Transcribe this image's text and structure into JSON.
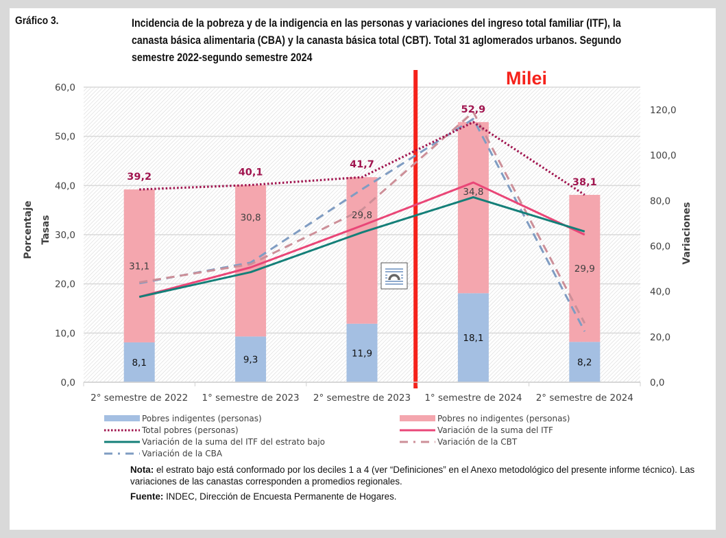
{
  "figure": {
    "label": "Gráfico 3.",
    "title": "Incidencia de la pobreza y de la indigencia en las personas y variaciones del ingreso total familiar (ITF), la canasta básica alimentaria (CBA) y la canasta básica total (CBT). Total 31 aglomerados urbanos. Segundo semestre 2022-segundo semestre 2024",
    "annotation": "Milei",
    "annotation_color": "#f5221b",
    "embedded_icon": "text-wrap-layout-icon"
  },
  "notes": {
    "nota_label": "Nota:",
    "nota_text": " el estrato bajo está conformado por los deciles 1 a 4 (ver “Definiciones” en el Anexo metodológico del presente informe técnico). Las variaciones de las canastas corresponden a promedios regionales.",
    "fuente_label": "Fuente:",
    "fuente_text": " INDEC, Dirección de Encuesta Permanente de Hogares."
  },
  "chart_data": {
    "type": "bar",
    "title": "Incidencia de la pobreza y de la indigencia en las personas y variaciones del ingreso total familiar (ITF), la canasta básica alimentaria (CBA) y la canasta básica total (CBT). Total 31 aglomerados urbanos. Segundo semestre 2022-segundo semestre 2024",
    "categories": [
      "2° semestre de 2022",
      "1° semestre de 2023",
      "2° semestre de 2023",
      "1° semestre de 2024",
      "2° semestre de 2024"
    ],
    "ylabel": "Tasas\nPorcentaje",
    "y2label": "Variaciones",
    "ylim": [
      0,
      60
    ],
    "y2lim": [
      0,
      130
    ],
    "yticks": [
      "0,0",
      "10,0",
      "20,0",
      "30,0",
      "40,0",
      "50,0",
      "60,0"
    ],
    "y2ticks": [
      "0,0",
      "20,0",
      "40,0",
      "60,0",
      "80,0",
      "100,0",
      "120,0"
    ],
    "grid": true,
    "legend_position": "bottom",
    "vertical_marker": {
      "between": [
        "2° semestre de 2023",
        "1° semestre de 2024"
      ],
      "label": "Milei",
      "color": "#f5221b"
    },
    "series": [
      {
        "name": "Pobres indigentes (personas)",
        "kind": "stacked-bar",
        "axis": "left",
        "color": "#a4bfe2",
        "values": [
          8.1,
          9.3,
          11.9,
          18.1,
          8.2
        ],
        "labels": [
          "8,1",
          "9,3",
          "11,9",
          "18,1",
          "8,2"
        ]
      },
      {
        "name": "Pobres no indigentes (personas)",
        "kind": "stacked-bar",
        "axis": "left",
        "color": "#f4a6ae",
        "values": [
          31.1,
          30.8,
          29.8,
          34.8,
          29.9
        ],
        "labels": [
          "31,1",
          "30,8",
          "29,8",
          "34,8",
          "29,9"
        ]
      },
      {
        "name": "Total pobres (personas)",
        "kind": "line",
        "style": "dotted",
        "axis": "left",
        "color": "#a0154f",
        "values": [
          39.2,
          40.1,
          41.7,
          52.9,
          38.1
        ],
        "labels": [
          "39,2",
          "40,1",
          "41,7",
          "52,9",
          "38,1"
        ]
      },
      {
        "name": "Variación de la suma del ITF",
        "kind": "line",
        "style": "solid",
        "axis": "right",
        "color": "#e94677",
        "values": [
          37.6,
          50.6,
          69.0,
          88.0,
          65.0
        ]
      },
      {
        "name": "Variación de la suma del ITF del estrato bajo",
        "kind": "line",
        "style": "solid",
        "axis": "right",
        "color": "#147f78",
        "values": [
          37.6,
          48.5,
          66.0,
          81.5,
          66.4
        ]
      },
      {
        "name": "Variación de la CBT",
        "kind": "line",
        "style": "dashed",
        "axis": "right",
        "color": "#cc8f98",
        "values": [
          44.0,
          52.0,
          76.0,
          119.0,
          26.0
        ]
      },
      {
        "name": "Variación de la CBA",
        "kind": "line",
        "style": "dashed",
        "axis": "right",
        "color": "#7f9cc2",
        "values": [
          43.6,
          52.7,
          85.0,
          116.0,
          22.4
        ]
      }
    ],
    "legend": [
      "Pobres indigentes (personas)",
      "Pobres no indigentes (personas)",
      "Total pobres (personas)",
      "Variación de la suma del ITF",
      "Variación de la suma del ITF del estrato bajo",
      "Variación de la CBT",
      "Variación de la CBA"
    ]
  }
}
